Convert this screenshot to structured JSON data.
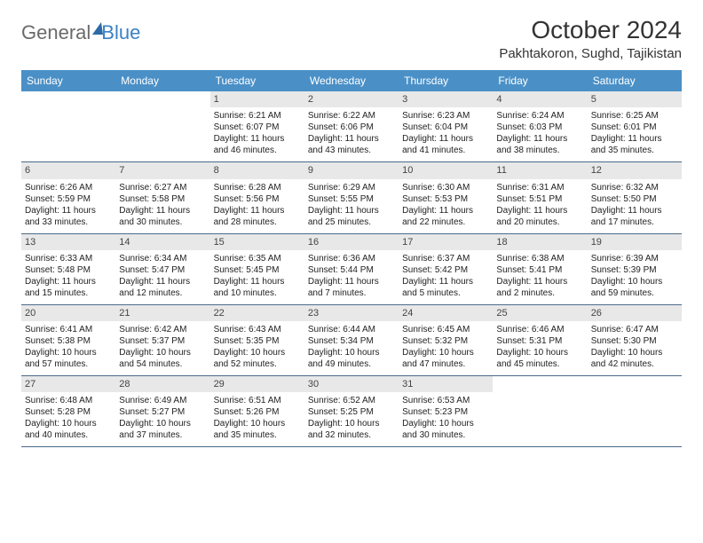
{
  "logo": {
    "part1": "General",
    "part2": "Blue"
  },
  "title": "October 2024",
  "location": "Pakhtakoron, Sughd, Tajikistan",
  "colors": {
    "header_bg": "#4a90c7",
    "header_text": "#ffffff",
    "daynum_bg": "#e8e8e8",
    "row_border": "#4a6a8a",
    "logo_gray": "#6a6a6a",
    "logo_blue": "#3b82c4"
  },
  "weekdays": [
    "Sunday",
    "Monday",
    "Tuesday",
    "Wednesday",
    "Thursday",
    "Friday",
    "Saturday"
  ],
  "weeks": [
    [
      {
        "day": "",
        "sunrise": "",
        "sunset": "",
        "daylight1": "",
        "daylight2": "",
        "empty": true
      },
      {
        "day": "",
        "sunrise": "",
        "sunset": "",
        "daylight1": "",
        "daylight2": "",
        "empty": true
      },
      {
        "day": "1",
        "sunrise": "Sunrise: 6:21 AM",
        "sunset": "Sunset: 6:07 PM",
        "daylight1": "Daylight: 11 hours",
        "daylight2": "and 46 minutes."
      },
      {
        "day": "2",
        "sunrise": "Sunrise: 6:22 AM",
        "sunset": "Sunset: 6:06 PM",
        "daylight1": "Daylight: 11 hours",
        "daylight2": "and 43 minutes."
      },
      {
        "day": "3",
        "sunrise": "Sunrise: 6:23 AM",
        "sunset": "Sunset: 6:04 PM",
        "daylight1": "Daylight: 11 hours",
        "daylight2": "and 41 minutes."
      },
      {
        "day": "4",
        "sunrise": "Sunrise: 6:24 AM",
        "sunset": "Sunset: 6:03 PM",
        "daylight1": "Daylight: 11 hours",
        "daylight2": "and 38 minutes."
      },
      {
        "day": "5",
        "sunrise": "Sunrise: 6:25 AM",
        "sunset": "Sunset: 6:01 PM",
        "daylight1": "Daylight: 11 hours",
        "daylight2": "and 35 minutes."
      }
    ],
    [
      {
        "day": "6",
        "sunrise": "Sunrise: 6:26 AM",
        "sunset": "Sunset: 5:59 PM",
        "daylight1": "Daylight: 11 hours",
        "daylight2": "and 33 minutes."
      },
      {
        "day": "7",
        "sunrise": "Sunrise: 6:27 AM",
        "sunset": "Sunset: 5:58 PM",
        "daylight1": "Daylight: 11 hours",
        "daylight2": "and 30 minutes."
      },
      {
        "day": "8",
        "sunrise": "Sunrise: 6:28 AM",
        "sunset": "Sunset: 5:56 PM",
        "daylight1": "Daylight: 11 hours",
        "daylight2": "and 28 minutes."
      },
      {
        "day": "9",
        "sunrise": "Sunrise: 6:29 AM",
        "sunset": "Sunset: 5:55 PM",
        "daylight1": "Daylight: 11 hours",
        "daylight2": "and 25 minutes."
      },
      {
        "day": "10",
        "sunrise": "Sunrise: 6:30 AM",
        "sunset": "Sunset: 5:53 PM",
        "daylight1": "Daylight: 11 hours",
        "daylight2": "and 22 minutes."
      },
      {
        "day": "11",
        "sunrise": "Sunrise: 6:31 AM",
        "sunset": "Sunset: 5:51 PM",
        "daylight1": "Daylight: 11 hours",
        "daylight2": "and 20 minutes."
      },
      {
        "day": "12",
        "sunrise": "Sunrise: 6:32 AM",
        "sunset": "Sunset: 5:50 PM",
        "daylight1": "Daylight: 11 hours",
        "daylight2": "and 17 minutes."
      }
    ],
    [
      {
        "day": "13",
        "sunrise": "Sunrise: 6:33 AM",
        "sunset": "Sunset: 5:48 PM",
        "daylight1": "Daylight: 11 hours",
        "daylight2": "and 15 minutes."
      },
      {
        "day": "14",
        "sunrise": "Sunrise: 6:34 AM",
        "sunset": "Sunset: 5:47 PM",
        "daylight1": "Daylight: 11 hours",
        "daylight2": "and 12 minutes."
      },
      {
        "day": "15",
        "sunrise": "Sunrise: 6:35 AM",
        "sunset": "Sunset: 5:45 PM",
        "daylight1": "Daylight: 11 hours",
        "daylight2": "and 10 minutes."
      },
      {
        "day": "16",
        "sunrise": "Sunrise: 6:36 AM",
        "sunset": "Sunset: 5:44 PM",
        "daylight1": "Daylight: 11 hours",
        "daylight2": "and 7 minutes."
      },
      {
        "day": "17",
        "sunrise": "Sunrise: 6:37 AM",
        "sunset": "Sunset: 5:42 PM",
        "daylight1": "Daylight: 11 hours",
        "daylight2": "and 5 minutes."
      },
      {
        "day": "18",
        "sunrise": "Sunrise: 6:38 AM",
        "sunset": "Sunset: 5:41 PM",
        "daylight1": "Daylight: 11 hours",
        "daylight2": "and 2 minutes."
      },
      {
        "day": "19",
        "sunrise": "Sunrise: 6:39 AM",
        "sunset": "Sunset: 5:39 PM",
        "daylight1": "Daylight: 10 hours",
        "daylight2": "and 59 minutes."
      }
    ],
    [
      {
        "day": "20",
        "sunrise": "Sunrise: 6:41 AM",
        "sunset": "Sunset: 5:38 PM",
        "daylight1": "Daylight: 10 hours",
        "daylight2": "and 57 minutes."
      },
      {
        "day": "21",
        "sunrise": "Sunrise: 6:42 AM",
        "sunset": "Sunset: 5:37 PM",
        "daylight1": "Daylight: 10 hours",
        "daylight2": "and 54 minutes."
      },
      {
        "day": "22",
        "sunrise": "Sunrise: 6:43 AM",
        "sunset": "Sunset: 5:35 PM",
        "daylight1": "Daylight: 10 hours",
        "daylight2": "and 52 minutes."
      },
      {
        "day": "23",
        "sunrise": "Sunrise: 6:44 AM",
        "sunset": "Sunset: 5:34 PM",
        "daylight1": "Daylight: 10 hours",
        "daylight2": "and 49 minutes."
      },
      {
        "day": "24",
        "sunrise": "Sunrise: 6:45 AM",
        "sunset": "Sunset: 5:32 PM",
        "daylight1": "Daylight: 10 hours",
        "daylight2": "and 47 minutes."
      },
      {
        "day": "25",
        "sunrise": "Sunrise: 6:46 AM",
        "sunset": "Sunset: 5:31 PM",
        "daylight1": "Daylight: 10 hours",
        "daylight2": "and 45 minutes."
      },
      {
        "day": "26",
        "sunrise": "Sunrise: 6:47 AM",
        "sunset": "Sunset: 5:30 PM",
        "daylight1": "Daylight: 10 hours",
        "daylight2": "and 42 minutes."
      }
    ],
    [
      {
        "day": "27",
        "sunrise": "Sunrise: 6:48 AM",
        "sunset": "Sunset: 5:28 PM",
        "daylight1": "Daylight: 10 hours",
        "daylight2": "and 40 minutes."
      },
      {
        "day": "28",
        "sunrise": "Sunrise: 6:49 AM",
        "sunset": "Sunset: 5:27 PM",
        "daylight1": "Daylight: 10 hours",
        "daylight2": "and 37 minutes."
      },
      {
        "day": "29",
        "sunrise": "Sunrise: 6:51 AM",
        "sunset": "Sunset: 5:26 PM",
        "daylight1": "Daylight: 10 hours",
        "daylight2": "and 35 minutes."
      },
      {
        "day": "30",
        "sunrise": "Sunrise: 6:52 AM",
        "sunset": "Sunset: 5:25 PM",
        "daylight1": "Daylight: 10 hours",
        "daylight2": "and 32 minutes."
      },
      {
        "day": "31",
        "sunrise": "Sunrise: 6:53 AM",
        "sunset": "Sunset: 5:23 PM",
        "daylight1": "Daylight: 10 hours",
        "daylight2": "and 30 minutes."
      },
      {
        "day": "",
        "sunrise": "",
        "sunset": "",
        "daylight1": "",
        "daylight2": "",
        "empty": true
      },
      {
        "day": "",
        "sunrise": "",
        "sunset": "",
        "daylight1": "",
        "daylight2": "",
        "empty": true
      }
    ]
  ]
}
